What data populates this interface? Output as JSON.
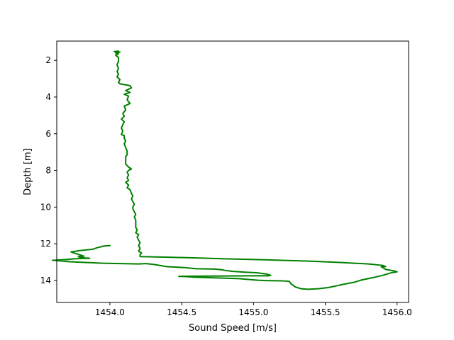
{
  "chart_data": {
    "type": "line",
    "title": "",
    "xlabel": "Sound Speed [m/s]",
    "ylabel": "Depth [m]",
    "xlim": [
      1453.63,
      1456.08
    ],
    "ylim": [
      15.2,
      0.95
    ],
    "y_inverted": true,
    "grid": false,
    "legend": "none",
    "x_ticks": [
      1454.0,
      1454.5,
      1455.0,
      1455.5,
      1456.0
    ],
    "x_tick_labels": [
      "1454.0",
      "1454.5",
      "1455.0",
      "1455.5",
      "1456.0"
    ],
    "y_ticks": [
      2,
      4,
      6,
      8,
      10,
      12,
      14
    ],
    "y_tick_labels": [
      "2",
      "4",
      "6",
      "8",
      "10",
      "12",
      "14"
    ],
    "series": [
      {
        "color": "#008000",
        "points": [
          [
            1454.06,
            1.5
          ],
          [
            1454.03,
            1.52
          ],
          [
            1454.07,
            1.55
          ],
          [
            1454.04,
            1.6
          ],
          [
            1454.06,
            1.65
          ],
          [
            1454.04,
            1.72
          ],
          [
            1454.06,
            1.85
          ],
          [
            1454.06,
            2.05
          ],
          [
            1454.05,
            2.25
          ],
          [
            1454.06,
            2.45
          ],
          [
            1454.05,
            2.6
          ],
          [
            1454.06,
            2.75
          ],
          [
            1454.05,
            2.9
          ],
          [
            1454.07,
            3.05
          ],
          [
            1454.06,
            3.2
          ],
          [
            1454.07,
            3.28
          ],
          [
            1454.14,
            3.38
          ],
          [
            1454.15,
            3.5
          ],
          [
            1454.11,
            3.65
          ],
          [
            1454.14,
            3.75
          ],
          [
            1454.1,
            3.85
          ],
          [
            1454.13,
            3.95
          ],
          [
            1454.12,
            4.15
          ],
          [
            1454.14,
            4.35
          ],
          [
            1454.1,
            4.5
          ],
          [
            1454.11,
            4.7
          ],
          [
            1454.09,
            4.9
          ],
          [
            1454.1,
            5.05
          ],
          [
            1454.08,
            5.2
          ],
          [
            1454.1,
            5.35
          ],
          [
            1454.09,
            5.5
          ],
          [
            1454.08,
            5.7
          ],
          [
            1454.09,
            5.85
          ],
          [
            1454.08,
            6.05
          ],
          [
            1454.1,
            6.1
          ],
          [
            1454.1,
            6.25
          ],
          [
            1454.11,
            6.4
          ],
          [
            1454.1,
            6.55
          ],
          [
            1454.11,
            6.75
          ],
          [
            1454.12,
            6.95
          ],
          [
            1454.12,
            7.05
          ],
          [
            1454.12,
            7.15
          ],
          [
            1454.11,
            7.25
          ],
          [
            1454.11,
            7.45
          ],
          [
            1454.11,
            7.65
          ],
          [
            1454.13,
            7.82
          ],
          [
            1454.15,
            7.92
          ],
          [
            1454.13,
            8.0
          ],
          [
            1454.12,
            8.1
          ],
          [
            1454.13,
            8.25
          ],
          [
            1454.12,
            8.4
          ],
          [
            1454.13,
            8.55
          ],
          [
            1454.11,
            8.65
          ],
          [
            1454.13,
            8.8
          ],
          [
            1454.12,
            8.95
          ],
          [
            1454.14,
            9.05
          ],
          [
            1454.15,
            9.25
          ],
          [
            1454.16,
            9.4
          ],
          [
            1454.15,
            9.55
          ],
          [
            1454.16,
            9.7
          ],
          [
            1454.17,
            9.85
          ],
          [
            1454.16,
            10.0
          ],
          [
            1454.16,
            10.1
          ],
          [
            1454.17,
            10.25
          ],
          [
            1454.18,
            10.4
          ],
          [
            1454.17,
            10.55
          ],
          [
            1454.18,
            10.7
          ],
          [
            1454.18,
            10.85
          ],
          [
            1454.18,
            11.0
          ],
          [
            1454.18,
            11.1
          ],
          [
            1454.19,
            11.25
          ],
          [
            1454.18,
            11.4
          ],
          [
            1454.2,
            11.5
          ],
          [
            1454.19,
            11.65
          ],
          [
            1454.2,
            11.8
          ],
          [
            1454.21,
            11.95
          ],
          [
            1454.2,
            12.1
          ],
          [
            1454.21,
            12.25
          ],
          [
            1454.2,
            12.4
          ],
          [
            1454.22,
            12.5
          ],
          [
            1454.21,
            12.6
          ],
          [
            1454.21,
            12.7
          ],
          [
            1454.38,
            12.73
          ],
          [
            1454.6,
            12.77
          ],
          [
            1454.8,
            12.82
          ],
          [
            1455.1,
            12.88
          ],
          [
            1455.4,
            12.95
          ],
          [
            1455.6,
            13.02
          ],
          [
            1455.8,
            13.1
          ],
          [
            1455.9,
            13.18
          ],
          [
            1455.92,
            13.24
          ],
          [
            1455.89,
            13.26
          ],
          [
            1455.91,
            13.34
          ],
          [
            1455.92,
            13.4
          ],
          [
            1455.98,
            13.48
          ],
          [
            1456.0,
            13.53
          ],
          [
            1455.96,
            13.58
          ],
          [
            1455.9,
            13.72
          ],
          [
            1455.83,
            13.85
          ],
          [
            1455.75,
            13.98
          ],
          [
            1455.7,
            14.1
          ],
          [
            1455.62,
            14.22
          ],
          [
            1455.58,
            14.29
          ],
          [
            1455.52,
            14.39
          ],
          [
            1455.45,
            14.45
          ],
          [
            1455.38,
            14.48
          ],
          [
            1455.33,
            14.45
          ],
          [
            1455.29,
            14.35
          ],
          [
            1455.26,
            14.18
          ],
          [
            1455.25,
            14.05
          ],
          [
            1455.2,
            14.02
          ],
          [
            1455.1,
            14.01
          ],
          [
            1455.03,
            13.99
          ],
          [
            1454.9,
            13.9
          ],
          [
            1454.82,
            13.88
          ],
          [
            1454.69,
            13.85
          ],
          [
            1454.58,
            13.82
          ],
          [
            1454.55,
            13.8
          ],
          [
            1454.5,
            13.78
          ],
          [
            1454.48,
            13.78
          ],
          [
            1454.53,
            13.77
          ],
          [
            1454.7,
            13.76
          ],
          [
            1454.9,
            13.75
          ],
          [
            1455.05,
            13.74
          ],
          [
            1455.1,
            13.75
          ],
          [
            1455.12,
            13.72
          ],
          [
            1455.09,
            13.65
          ],
          [
            1455.02,
            13.58
          ],
          [
            1454.94,
            13.55
          ],
          [
            1454.85,
            13.5
          ],
          [
            1454.8,
            13.45
          ],
          [
            1454.78,
            13.42
          ],
          [
            1454.73,
            13.38
          ],
          [
            1454.6,
            13.36
          ],
          [
            1454.52,
            13.3
          ],
          [
            1454.4,
            13.25
          ],
          [
            1454.3,
            13.12
          ],
          [
            1454.25,
            13.08
          ],
          [
            1454.2,
            13.1
          ],
          [
            1453.95,
            13.06
          ],
          [
            1453.72,
            12.98
          ],
          [
            1453.6,
            12.9
          ],
          [
            1453.7,
            12.86
          ],
          [
            1453.75,
            12.82
          ],
          [
            1453.86,
            12.79
          ],
          [
            1453.8,
            12.76
          ],
          [
            1453.78,
            12.7
          ],
          [
            1453.82,
            12.68
          ],
          [
            1453.73,
            12.45
          ],
          [
            1453.78,
            12.38
          ],
          [
            1453.88,
            12.3
          ],
          [
            1453.91,
            12.22
          ],
          [
            1453.96,
            12.12
          ],
          [
            1454.0,
            12.1
          ]
        ]
      }
    ]
  }
}
